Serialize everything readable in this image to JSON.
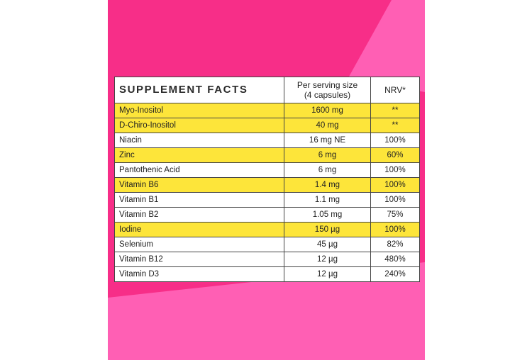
{
  "colors": {
    "background_pink": "#f72e88",
    "accent_pink": "#ff5fb4",
    "highlight_yellow": "#fde53a"
  },
  "table": {
    "title": "SUPPLEMENT FACTS",
    "serving_header_line1": "Per serving size",
    "serving_header_line2": "(4 capsules)",
    "nrv_header": "NRV*",
    "rows": [
      {
        "nutrient": "Myo-Inositol",
        "amount": "1600 mg",
        "nrv": "**",
        "highlight": true
      },
      {
        "nutrient": "D-Chiro-Inositol",
        "amount": "40 mg",
        "nrv": "**",
        "highlight": true
      },
      {
        "nutrient": "Niacin",
        "amount": "16 mg NE",
        "nrv": "100%",
        "highlight": false
      },
      {
        "nutrient": "Zinc",
        "amount": "6 mg",
        "nrv": "60%",
        "highlight": true
      },
      {
        "nutrient": "Pantothenic Acid",
        "amount": "6 mg",
        "nrv": "100%",
        "highlight": false
      },
      {
        "nutrient": "Vitamin B6",
        "amount": "1.4 mg",
        "nrv": "100%",
        "highlight": true
      },
      {
        "nutrient": "Vitamin B1",
        "amount": "1.1 mg",
        "nrv": "100%",
        "highlight": false
      },
      {
        "nutrient": "Vitamin B2",
        "amount": "1.05 mg",
        "nrv": "75%",
        "highlight": false
      },
      {
        "nutrient": "Iodine",
        "amount": "150 µg",
        "nrv": "100%",
        "highlight": true
      },
      {
        "nutrient": "Selenium",
        "amount": "45 µg",
        "nrv": "82%",
        "highlight": false
      },
      {
        "nutrient": "Vitamin B12",
        "amount": "12 µg",
        "nrv": "480%",
        "highlight": false
      },
      {
        "nutrient": "Vitamin D3",
        "amount": "12 µg",
        "nrv": "240%",
        "highlight": false
      }
    ]
  }
}
